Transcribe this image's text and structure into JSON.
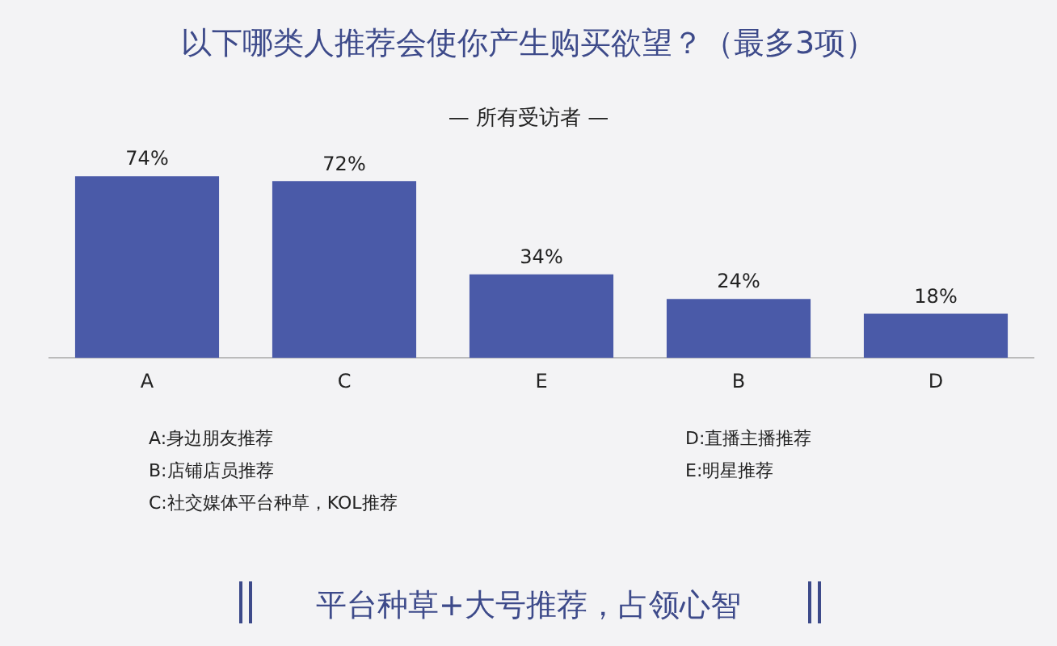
{
  "chart_data": {
    "type": "bar",
    "title": "以下哪类人推荐会使你产生购买欲望？（最多3项）",
    "subtitle": "— 所有受访者 —",
    "categories": [
      "A",
      "C",
      "E",
      "B",
      "D"
    ],
    "values": [
      74,
      72,
      34,
      24,
      18
    ],
    "value_labels": [
      "74%",
      "72%",
      "34%",
      "24%",
      "18%"
    ],
    "color": "#4a5aa8",
    "tick_labels": "x",
    "grid": false,
    "legend": false,
    "annotations": [
      "A:身边朋友推荐",
      "B:店铺店员推荐",
      "C:社交媒体平台种草，KOL推荐",
      "D:直播主播推荐",
      "E:明星推荐",
      "平台种草+大号推荐，占领心智"
    ]
  }
}
